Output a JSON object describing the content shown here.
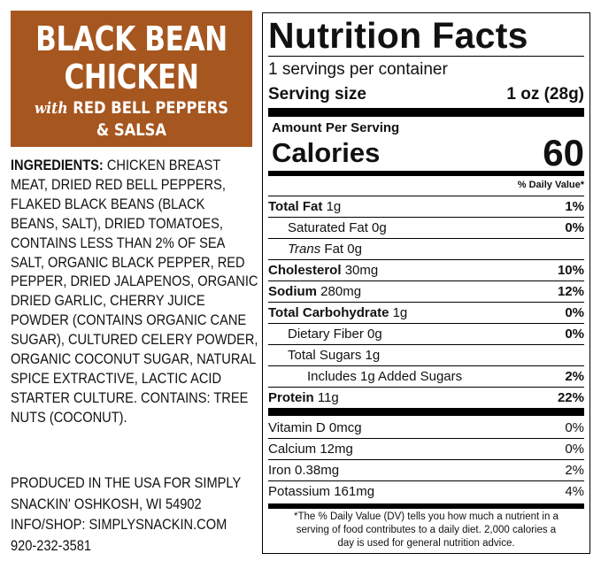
{
  "brand": {
    "line1": "BLACK BEAN",
    "line2": "CHICKEN",
    "with": "with",
    "line3": "RED BELL PEPPERS",
    "line4": "& SALSA"
  },
  "ingredients": {
    "label": "INGREDIENTS:",
    "lines": [
      "CHICKEN BREAST",
      "MEAT, DRIED RED BELL PEPPERS,",
      "FLAKED BLACK BEANS (BLACK",
      "BEANS, SALT), DRIED TOMATOES,",
      "CONTAINS LESS THAN 2% OF SEA",
      "SALT, ORGANIC BLACK PEPPER, RED",
      "PEPPER, DRIED JALAPENOS, ORGANIC",
      "DRIED GARLIC, CHERRY JUICE",
      "POWDER (CONTAINS ORGANIC CANE",
      "SUGAR), CULTURED CELERY POWDER,",
      "ORGANIC COCONUT SUGAR, NATURAL",
      "SPICE EXTRACTIVE, LACTIC ACID",
      "STARTER CULTURE. CONTAINS: TREE",
      "NUTS (COCONUT)."
    ]
  },
  "producer": [
    "PRODUCED IN THE USA FOR SIMPLY",
    "SNACKIN' OSHKOSH, WI 54902",
    "INFO/SHOP: SIMPLYSNACKIN.COM",
    "920-232-3581"
  ],
  "nutrition": {
    "title": "Nutrition Facts",
    "servings": "1 servings per container",
    "serving_size_label": "Serving size",
    "serving_size": "1 oz (28g)",
    "amount_per_serving": "Amount Per Serving",
    "calories_label": "Calories",
    "calories": "60",
    "daily_value_header": "% Daily Value*",
    "rows": [
      {
        "name": "Total Fat",
        "amount": "1g",
        "dv": "1%"
      },
      {
        "name": "Saturated Fat 0g",
        "dv": "0%"
      },
      {
        "name": "Trans",
        "amount": "Fat 0g"
      },
      {
        "name": "Cholesterol",
        "amount": "30mg",
        "dv": "10%"
      },
      {
        "name": "Sodium",
        "amount": "280mg",
        "dv": "12%"
      },
      {
        "name": "Total Carbohydrate",
        "amount": "1g",
        "dv": "0%"
      },
      {
        "name": "Dietary Fiber 0g",
        "dv": "0%"
      },
      {
        "name": "Total Sugars 1g"
      },
      {
        "name": "Includes 1g Added Sugars",
        "dv": "2%"
      },
      {
        "name": "Protein",
        "amount": "11g",
        "dv": "22%"
      }
    ],
    "micros": [
      {
        "name": "Vitamin D 0mcg",
        "dv": "0%"
      },
      {
        "name": "Calcium 12mg",
        "dv": "0%"
      },
      {
        "name": "Iron 0.38mg",
        "dv": "2%"
      },
      {
        "name": "Potassium 161mg",
        "dv": "4%"
      }
    ],
    "footnote": [
      "*The % Daily Value (DV) tells you how much a nutrient in a",
      "serving of food contributes to a daily diet. 2,000 calories a",
      "day is used for general nutrition advice."
    ]
  }
}
